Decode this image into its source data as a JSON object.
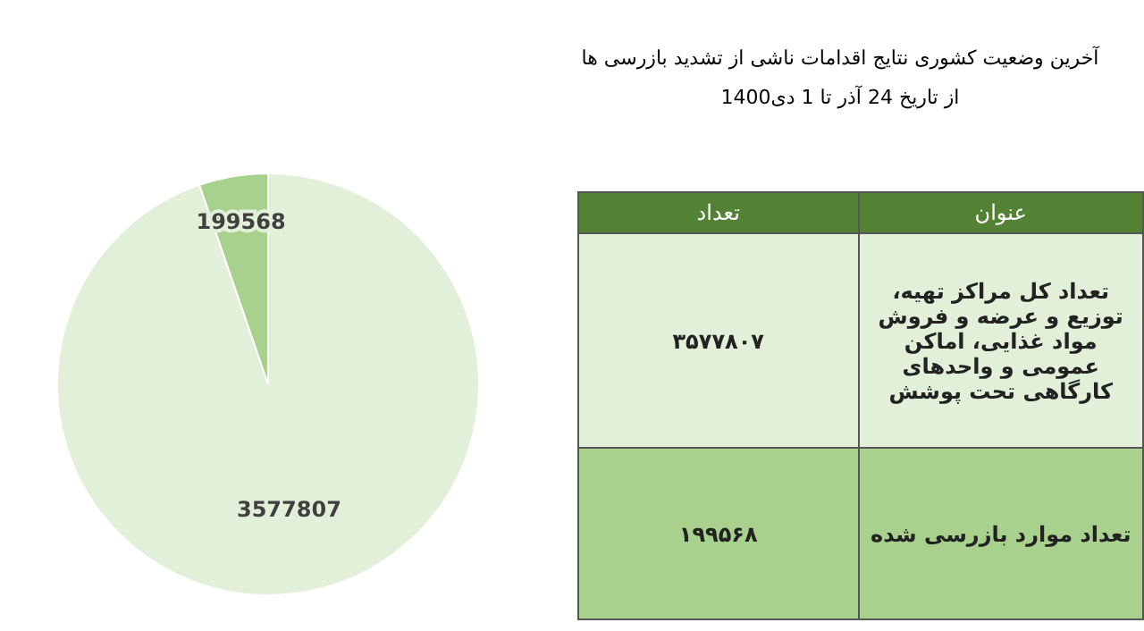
{
  "chart_data": [
    {
      "type": "pie",
      "title": "آخرین وضعیت کشوری نتایج اقدامات ناشی از تشدید بازرسی ها",
      "subtitle": "از تاریخ 24 آذر تا 1 دی1400",
      "categories": [
        null,
        null
      ],
      "values": [
        3577807,
        199568
      ],
      "colors": [
        "#e2efd9",
        "#a9d18e"
      ],
      "data_labels": true
    },
    {
      "type": "other",
      "annotations": [
        "عنوان",
        "تعداد",
        "تعداد کل مراکز تهیه، توزیع و عرضه و فروش مواد غذایی، اماکن عمومی و واحدهای کارگاهی تحت پوشش",
        "۳۵۷۷۸۰۷",
        "تعداد موارد بازرسی شده",
        "۱۹۹۵۶۸"
      ]
    }
  ]
}
